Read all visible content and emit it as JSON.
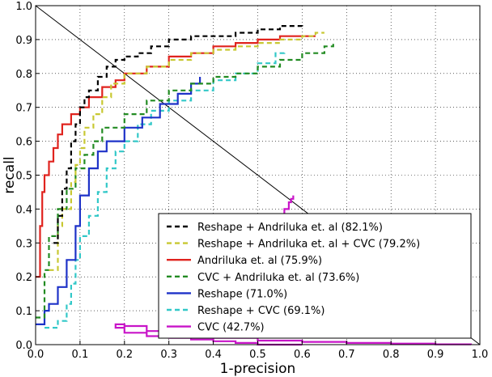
{
  "chart_data": {
    "type": "line",
    "title": "",
    "xlabel": "1-precision",
    "ylabel": "recall",
    "xlim": [
      0.0,
      1.0
    ],
    "ylim": [
      0.0,
      1.0
    ],
    "xticks": [
      "0.0",
      "0.1",
      "0.2",
      "0.3",
      "0.4",
      "0.5",
      "0.6",
      "0.7",
      "0.8",
      "0.9",
      "1.0"
    ],
    "yticks": [
      "0.0",
      "0.1",
      "0.2",
      "0.3",
      "0.4",
      "0.5",
      "0.6",
      "0.7",
      "0.8",
      "0.9",
      "1.0"
    ],
    "grid": true,
    "legend_position": "lower-right",
    "reference_line": {
      "x": [
        0.0,
        1.0
      ],
      "y": [
        1.0,
        0.0
      ],
      "color": "#000000"
    },
    "series": [
      {
        "name": "Reshape + Andriluka et. al (82.1%)",
        "color": "#000000",
        "dashed": true,
        "x": [
          0.04,
          0.05,
          0.06,
          0.07,
          0.08,
          0.09,
          0.1,
          0.11,
          0.12,
          0.14,
          0.16,
          0.18,
          0.2,
          0.23,
          0.26,
          0.3,
          0.35,
          0.4,
          0.45,
          0.5,
          0.55,
          0.58,
          0.6
        ],
        "y": [
          0.3,
          0.38,
          0.46,
          0.52,
          0.6,
          0.65,
          0.7,
          0.73,
          0.75,
          0.79,
          0.82,
          0.84,
          0.85,
          0.86,
          0.88,
          0.9,
          0.91,
          0.91,
          0.92,
          0.93,
          0.94,
          0.94,
          0.93
        ]
      },
      {
        "name": "Reshape + Andriluka et. al + CVC (79.2%)",
        "color": "#c8c832",
        "dashed": true,
        "x": [
          0.03,
          0.05,
          0.06,
          0.08,
          0.09,
          0.1,
          0.11,
          0.13,
          0.15,
          0.17,
          0.2,
          0.25,
          0.3,
          0.35,
          0.4,
          0.45,
          0.5,
          0.55,
          0.6,
          0.63,
          0.65
        ],
        "y": [
          0.22,
          0.35,
          0.4,
          0.48,
          0.53,
          0.58,
          0.64,
          0.68,
          0.73,
          0.77,
          0.8,
          0.82,
          0.84,
          0.86,
          0.87,
          0.88,
          0.89,
          0.9,
          0.91,
          0.92,
          0.92
        ]
      },
      {
        "name": "Andriluka et. al (75.9%)",
        "color": "#e0231e",
        "dashed": false,
        "x": [
          0.0,
          0.01,
          0.015,
          0.02,
          0.03,
          0.04,
          0.05,
          0.06,
          0.08,
          0.1,
          0.12,
          0.15,
          0.18,
          0.2,
          0.25,
          0.3,
          0.35,
          0.4,
          0.45,
          0.5,
          0.55,
          0.6,
          0.63
        ],
        "y": [
          0.2,
          0.35,
          0.45,
          0.5,
          0.54,
          0.58,
          0.62,
          0.65,
          0.68,
          0.7,
          0.73,
          0.76,
          0.78,
          0.8,
          0.82,
          0.85,
          0.86,
          0.88,
          0.89,
          0.9,
          0.91,
          0.91,
          0.91
        ]
      },
      {
        "name": "CVC + Andriluka et. al (73.6%)",
        "color": "#228b22",
        "dashed": true,
        "x": [
          0.0,
          0.02,
          0.03,
          0.05,
          0.07,
          0.09,
          0.11,
          0.13,
          0.15,
          0.2,
          0.25,
          0.3,
          0.35,
          0.4,
          0.45,
          0.5,
          0.55,
          0.6,
          0.65,
          0.67
        ],
        "y": [
          0.08,
          0.22,
          0.32,
          0.4,
          0.46,
          0.52,
          0.56,
          0.6,
          0.64,
          0.68,
          0.72,
          0.75,
          0.77,
          0.79,
          0.8,
          0.82,
          0.84,
          0.86,
          0.88,
          0.89
        ]
      },
      {
        "name": "Reshape (71.0%)",
        "color": "#1e32c8",
        "dashed": false,
        "x": [
          0.0,
          0.01,
          0.02,
          0.03,
          0.05,
          0.07,
          0.09,
          0.1,
          0.12,
          0.14,
          0.16,
          0.2,
          0.24,
          0.28,
          0.32,
          0.35,
          0.37
        ],
        "y": [
          0.06,
          0.06,
          0.1,
          0.12,
          0.17,
          0.25,
          0.35,
          0.44,
          0.52,
          0.57,
          0.6,
          0.64,
          0.67,
          0.71,
          0.74,
          0.77,
          0.79
        ]
      },
      {
        "name": "Reshape + CVC (69.1%)",
        "color": "#32c8c8",
        "dashed": true,
        "x": [
          0.02,
          0.05,
          0.07,
          0.08,
          0.09,
          0.1,
          0.12,
          0.14,
          0.16,
          0.18,
          0.2,
          0.23,
          0.26,
          0.3,
          0.35,
          0.4,
          0.45,
          0.5,
          0.54,
          0.56
        ],
        "y": [
          0.05,
          0.07,
          0.12,
          0.18,
          0.25,
          0.32,
          0.38,
          0.45,
          0.52,
          0.57,
          0.6,
          0.65,
          0.69,
          0.72,
          0.75,
          0.78,
          0.8,
          0.83,
          0.86,
          0.87
        ]
      },
      {
        "name": "CVC (42.7%)",
        "color": "#c814c8",
        "dashed": false,
        "x": [
          0.6,
          0.55,
          0.5,
          0.45,
          0.4,
          0.35,
          0.3,
          0.25,
          0.2,
          0.18,
          0.2,
          0.25,
          0.3,
          0.4,
          0.5,
          0.6,
          0.7,
          0.8,
          0.9,
          0.98,
          null,
          0.54,
          0.56,
          0.57,
          0.575,
          0.58
        ],
        "y": [
          0.0,
          0.0,
          0.005,
          0.01,
          0.015,
          0.02,
          0.025,
          0.035,
          0.05,
          0.06,
          0.055,
          0.04,
          0.03,
          0.02,
          0.012,
          0.008,
          0.005,
          0.003,
          0.001,
          0.0,
          null,
          0.38,
          0.4,
          0.42,
          0.43,
          0.44
        ]
      }
    ]
  }
}
